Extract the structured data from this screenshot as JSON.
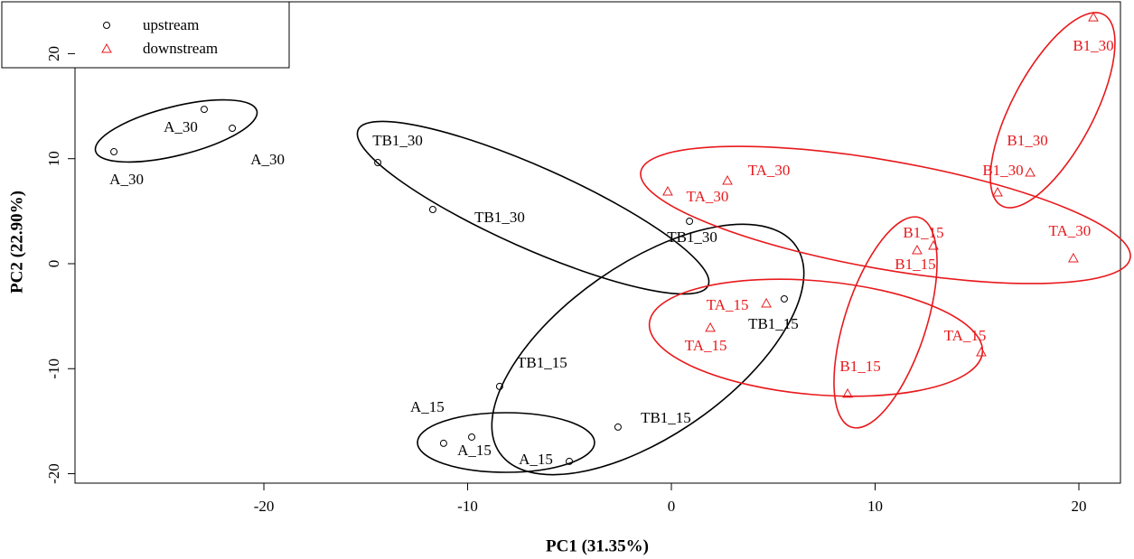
{
  "chart_data": {
    "type": "scatter",
    "x_label": "PC1 (31.35%)",
    "y_label": "PC2 (22.90%)",
    "xlim": [
      -29.27,
      22.04
    ],
    "ylim": [
      -20.9,
      24.94
    ],
    "xticks": [
      -20,
      -10,
      0,
      10,
      20
    ],
    "yticks": [
      -20,
      -10,
      0,
      10,
      20
    ],
    "legend": "top-left",
    "series": [
      {
        "name": "upstream",
        "color": "#000000",
        "marker": "circle",
        "x": [
          -27.36,
          -22.93,
          -21.55,
          -14.41,
          -11.71,
          0.89,
          5.54,
          -8.43,
          -2.62,
          -11.18,
          -9.8,
          -5.01
        ],
        "values": [
          10.66,
          14.7,
          12.9,
          9.63,
          5.16,
          4.04,
          -3.35,
          -11.69,
          -15.56,
          -17.11,
          -16.51,
          -18.83
        ],
        "labels": [
          "A_30",
          "A_30",
          "A_30",
          "TB1_30",
          "TB1_30",
          "TB1_30",
          "TB1_15",
          "TB1_15",
          "TB1_15",
          "A_15",
          "A_15",
          "A_15"
        ]
      },
      {
        "name": "downstream",
        "color": "#e8191c",
        "marker": "triangle",
        "x": [
          20.71,
          17.61,
          16.01,
          19.73,
          12.86,
          12.06,
          8.65,
          15.21,
          2.75,
          -0.18,
          4.66,
          1.91
        ],
        "values": [
          23.47,
          8.68,
          6.79,
          0.52,
          1.72,
          1.29,
          -12.38,
          -8.43,
          7.91,
          6.88,
          -3.78,
          -6.1
        ],
        "labels": [
          "B1_30",
          "B1_30",
          "B1_30",
          "TA_30",
          "B1_15",
          "B1_15",
          "B1_15",
          "TA_15",
          "TA_30",
          "TA_30",
          "TA_15",
          "TA_15"
        ]
      }
    ]
  }
}
